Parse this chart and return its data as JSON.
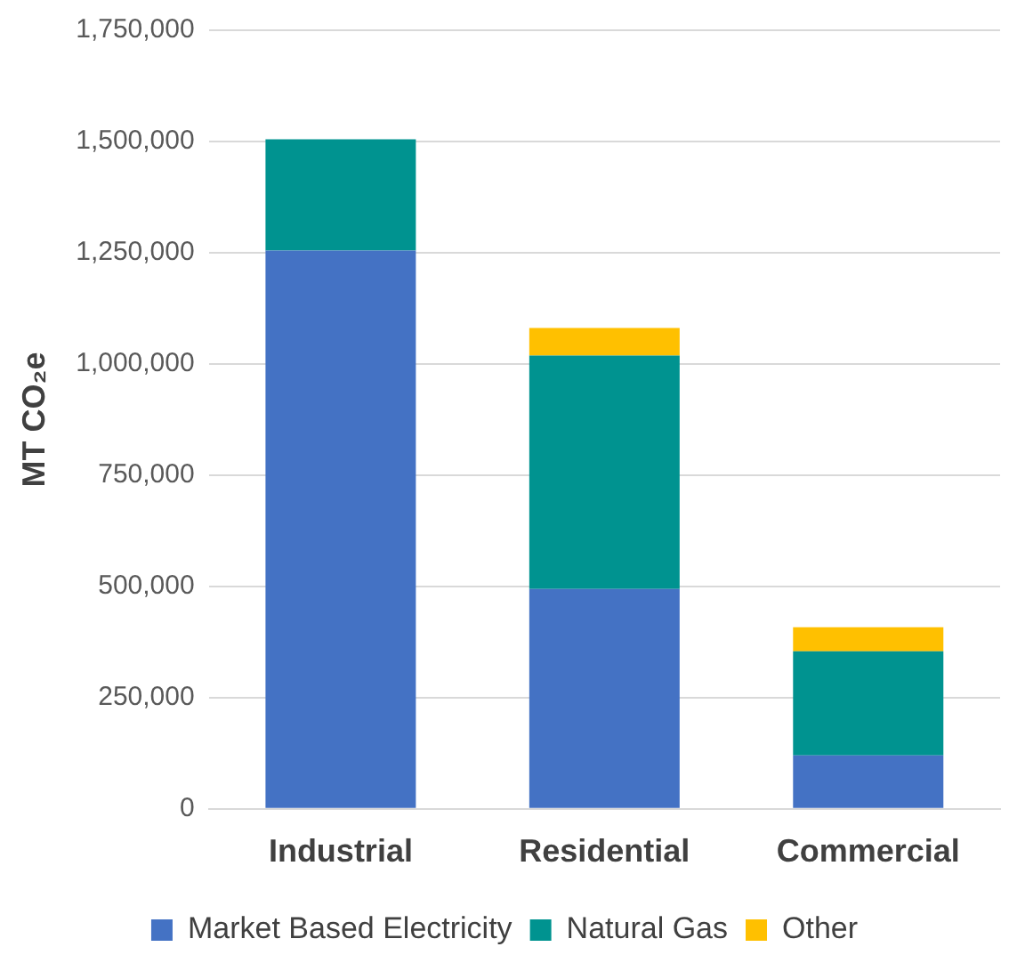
{
  "chart_data": {
    "type": "bar",
    "stacked": true,
    "ylabel": "MT CO₂e",
    "categories": [
      "Industrial",
      "Residential",
      "Commercial"
    ],
    "series": [
      {
        "name": "Market Based Electricity",
        "color": "#4472c4",
        "values": [
          1255000,
          494000,
          120000
        ]
      },
      {
        "name": "Natural Gas",
        "color": "#009390",
        "values": [
          250000,
          525000,
          234000
        ]
      },
      {
        "name": "Other",
        "color": "#ffc000",
        "values": [
          null,
          62000,
          54000
        ]
      }
    ],
    "ylim": [
      0,
      1750000
    ],
    "yticks": [
      0,
      {
        "value": 250000,
        "label": "250,000"
      },
      {
        "value": 500000,
        "label": "500,000"
      },
      {
        "value": 750000,
        "label": "750,000"
      },
      {
        "value": 1000000,
        "label": "1,000,000"
      },
      {
        "value": 1250000,
        "label": "1,250,000"
      },
      {
        "value": 1500000,
        "label": "1,500,000"
      },
      {
        "value": 1750000,
        "label": "1,750,000"
      }
    ],
    "grid": "y",
    "legend": "bottom"
  }
}
